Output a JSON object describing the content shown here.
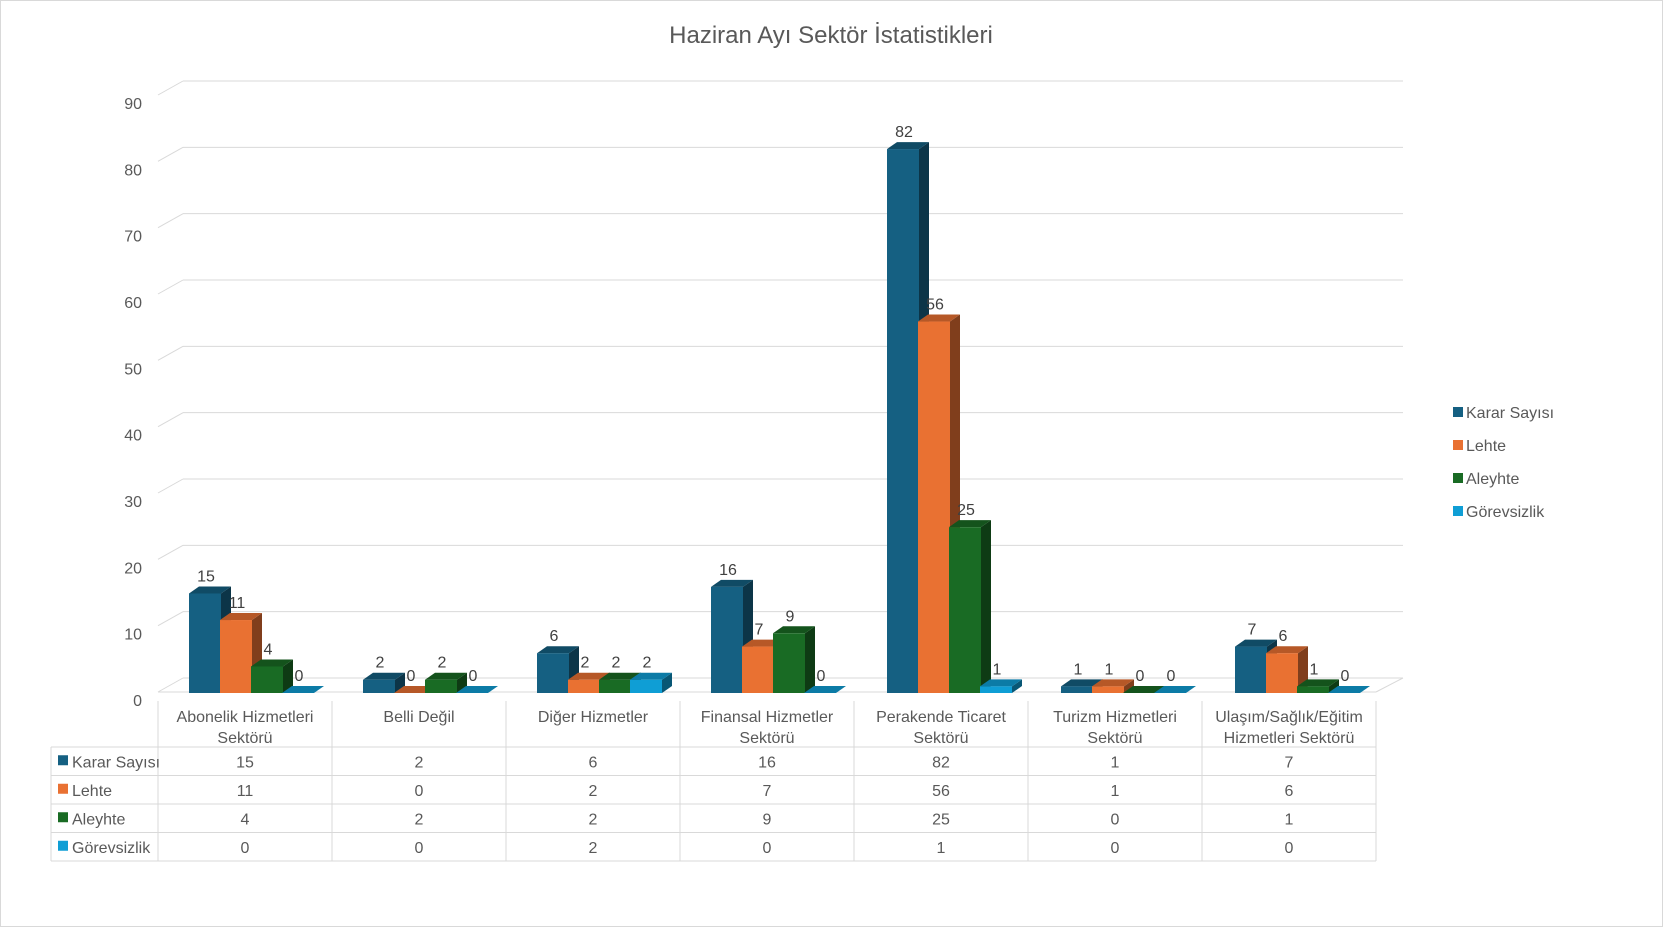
{
  "chart_data": {
    "type": "bar",
    "title": "Haziran Ayı Sektör İstatistikleri",
    "categories": [
      [
        "Abonelik Hizmetleri",
        "Sektörü"
      ],
      [
        "Belli Değil"
      ],
      [
        "Diğer Hizmetler"
      ],
      [
        "Finansal Hizmetler",
        "Sektörü"
      ],
      [
        "Perakende Ticaret",
        "Sektörü"
      ],
      [
        "Turizm Hizmetleri",
        "Sektörü"
      ],
      [
        "Ulaşım/Sağlık/Eğitim",
        "Hizmetleri Sektörü"
      ]
    ],
    "series": [
      {
        "name": "Karar Sayısı",
        "color": "#156082",
        "values": [
          15,
          2,
          6,
          16,
          82,
          1,
          7
        ]
      },
      {
        "name": "Lehte",
        "color": "#E97132",
        "values": [
          11,
          0,
          2,
          7,
          56,
          1,
          6
        ]
      },
      {
        "name": "Aleyhte",
        "color": "#196B24",
        "values": [
          4,
          2,
          2,
          9,
          25,
          0,
          1
        ]
      },
      {
        "name": "Görevsizlik",
        "color": "#0F9ED5",
        "values": [
          0,
          0,
          2,
          0,
          1,
          0,
          0
        ]
      }
    ],
    "ylim": [
      0,
      90
    ],
    "yticks": [
      0,
      10,
      20,
      30,
      40,
      50,
      60,
      70,
      80,
      90
    ],
    "grid": true,
    "legend": "right",
    "data_table": true,
    "three_d": true
  }
}
